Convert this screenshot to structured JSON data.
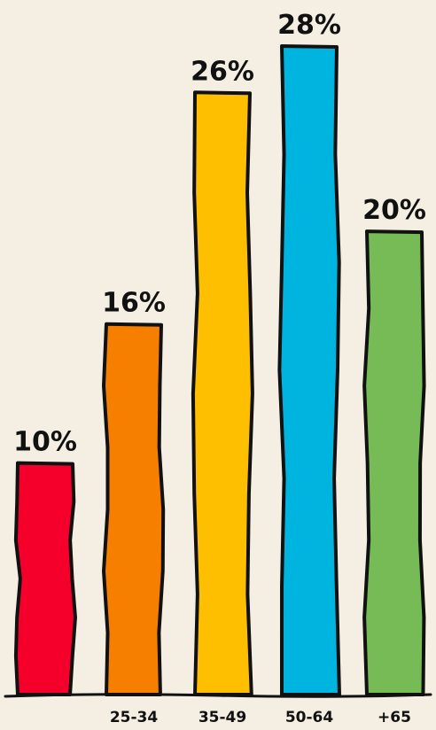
{
  "chart_data": {
    "type": "bar",
    "categories": [
      "",
      "25-34",
      "35-49",
      "50-64",
      "+65"
    ],
    "values": [
      10,
      16,
      26,
      28,
      20
    ],
    "value_labels": [
      "10%",
      "16%",
      "26%",
      "28%",
      "20%"
    ],
    "colors": [
      "#f5002a",
      "#f77f00",
      "#fdbf00",
      "#00b4e0",
      "#77bb57"
    ],
    "title": "",
    "xlabel": "",
    "ylabel": "",
    "ylim": [
      0,
      28
    ],
    "grid": false,
    "legend": "none"
  }
}
